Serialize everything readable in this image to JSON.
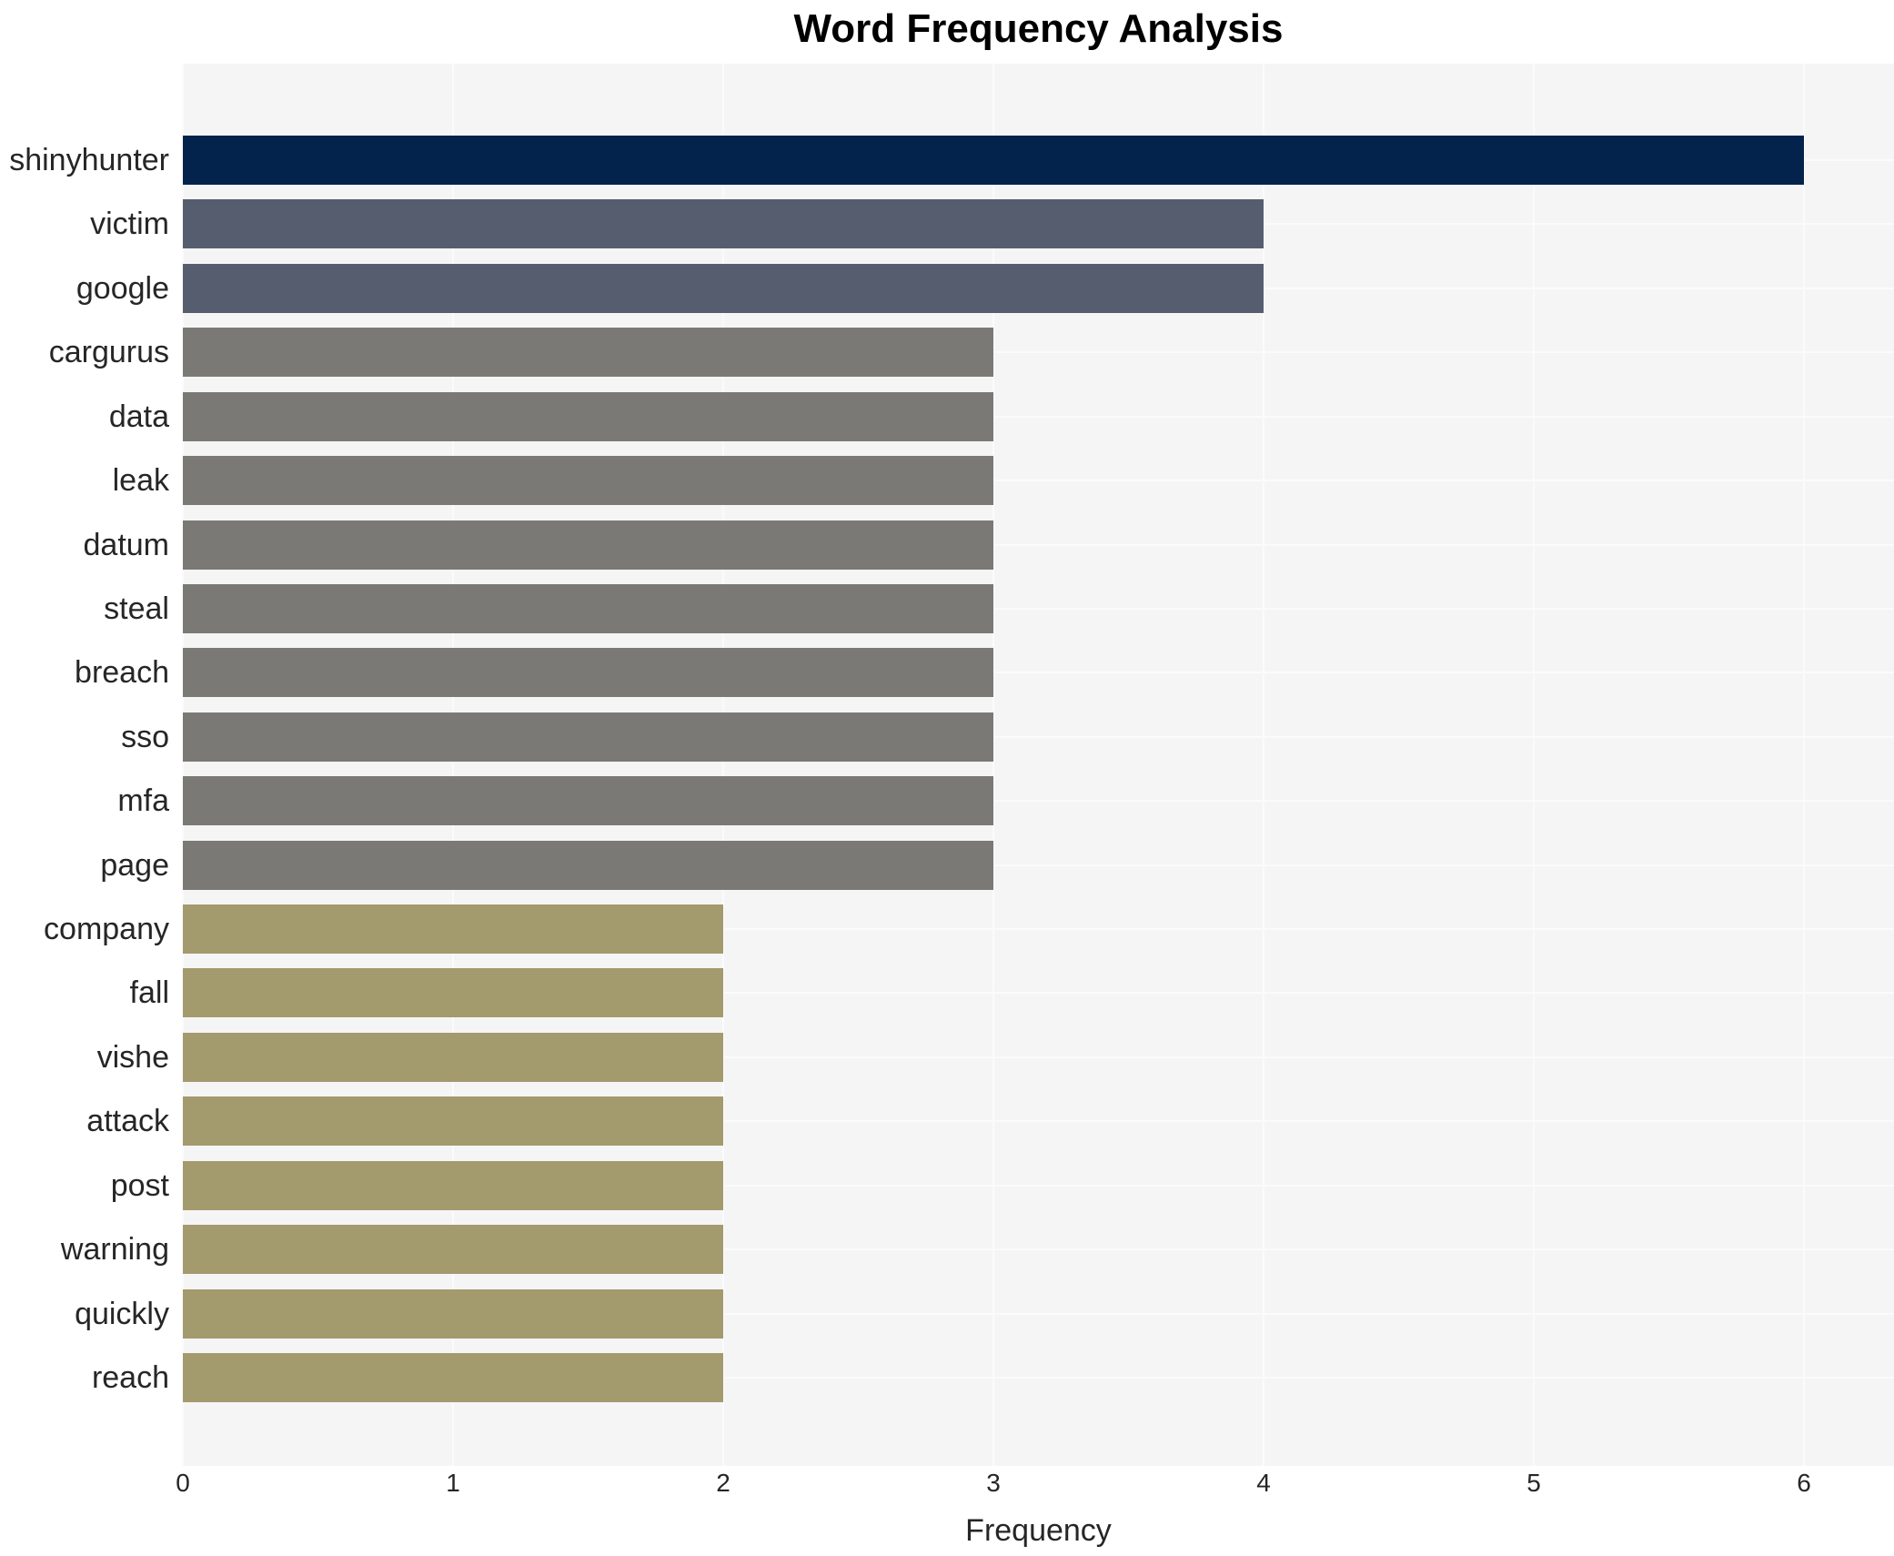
{
  "chart_data": {
    "type": "bar",
    "orientation": "horizontal",
    "title": "Word Frequency Analysis",
    "xlabel": "Frequency",
    "ylabel": "",
    "xlim": [
      0,
      6.33
    ],
    "xticks": [
      0,
      1,
      2,
      3,
      4,
      5,
      6
    ],
    "xtick_labels": [
      "0",
      "1",
      "2",
      "3",
      "4",
      "5",
      "6"
    ],
    "grid": "white gridlines on light panel at x ticks and category row centers, no axis spines",
    "legend": "none",
    "categories": [
      "shinyhunter",
      "victim",
      "google",
      "cargurus",
      "data",
      "leak",
      "datum",
      "steal",
      "breach",
      "sso",
      "mfa",
      "page",
      "company",
      "fall",
      "vishe",
      "attack",
      "post",
      "warning",
      "quickly",
      "reach"
    ],
    "values": [
      6,
      4,
      4,
      3,
      3,
      3,
      3,
      3,
      3,
      3,
      3,
      3,
      2,
      2,
      2,
      2,
      2,
      2,
      2,
      2
    ],
    "bar_colors": [
      "#03224c",
      "#565d6e",
      "#565d6e",
      "#7b7975",
      "#7b7975",
      "#7b7975",
      "#7b7975",
      "#7b7975",
      "#7b7975",
      "#7b7975",
      "#7b7975",
      "#7b7975",
      "#a39a6e",
      "#a39a6e",
      "#a39a6e",
      "#a39a6e",
      "#a39a6e",
      "#a39a6e",
      "#a39a6e",
      "#a39a6e"
    ],
    "palette_by_value": {
      "6": "#03224c",
      "4": "#565d6e",
      "3": "#7b7975",
      "2": "#a39a6e"
    },
    "colors": {
      "figure_bg": "#ffffff",
      "plot_bg": "#f5f5f6",
      "gridline": "#fbfbfb",
      "tick_text": "#262626",
      "label_text": "#262626",
      "title_text": "#000000"
    }
  }
}
